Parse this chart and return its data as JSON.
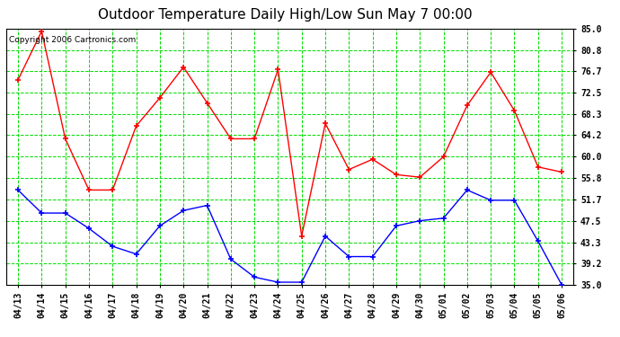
{
  "title": "Outdoor Temperature Daily High/Low Sun May 7 00:00",
  "copyright": "Copyright 2006 Cartronics.com",
  "dates": [
    "04/13",
    "04/14",
    "04/15",
    "04/16",
    "04/17",
    "04/18",
    "04/19",
    "04/20",
    "04/21",
    "04/22",
    "04/23",
    "04/24",
    "04/25",
    "04/26",
    "04/27",
    "04/28",
    "04/29",
    "04/30",
    "05/01",
    "05/02",
    "05/03",
    "05/04",
    "05/05",
    "05/06"
  ],
  "high_temps": [
    75.0,
    84.5,
    63.5,
    53.5,
    53.5,
    66.0,
    71.5,
    77.5,
    70.5,
    63.5,
    63.5,
    77.0,
    44.5,
    66.5,
    57.5,
    59.5,
    56.5,
    56.0,
    60.0,
    70.0,
    76.5,
    69.0,
    58.0,
    57.0
  ],
  "low_temps": [
    53.5,
    49.0,
    49.0,
    46.0,
    42.5,
    41.0,
    46.5,
    49.5,
    50.5,
    40.0,
    36.5,
    35.5,
    35.5,
    44.5,
    40.5,
    40.5,
    46.5,
    47.5,
    48.0,
    53.5,
    51.5,
    51.5,
    43.5,
    35.0
  ],
  "high_color": "#ff0000",
  "low_color": "#0000ff",
  "bg_color": "#ffffff",
  "grid_color": "#00dd00",
  "yticks": [
    35.0,
    39.2,
    43.3,
    47.5,
    51.7,
    55.8,
    60.0,
    64.2,
    68.3,
    72.5,
    76.7,
    80.8,
    85.0
  ],
  "ymin": 35.0,
  "ymax": 85.0,
  "title_fontsize": 11,
  "axis_fontsize": 7,
  "copyright_fontsize": 6.5
}
